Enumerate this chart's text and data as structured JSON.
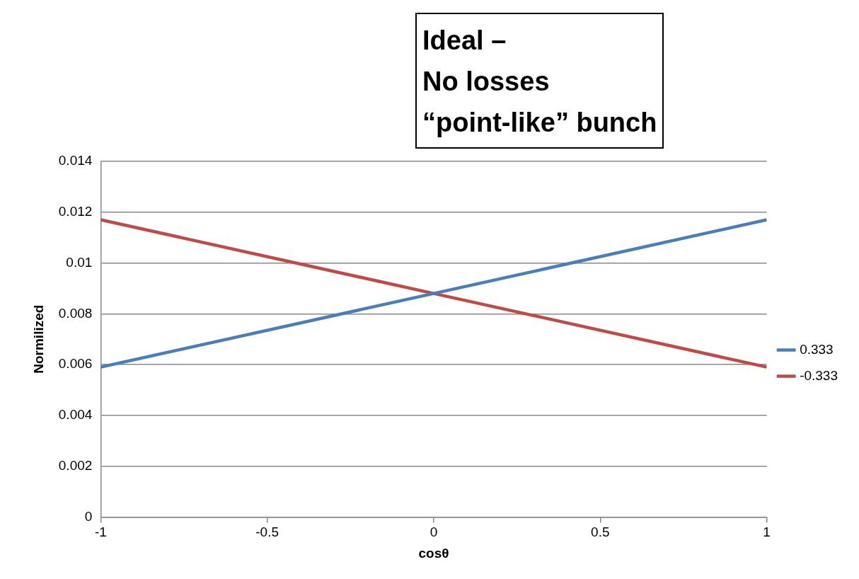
{
  "chart_data": {
    "type": "line",
    "annotations": [
      "Ideal –",
      "No losses",
      "“point-like” bunch"
    ],
    "xlabel": "cosθ",
    "ylabel": "Normilized",
    "x": [
      -1,
      0,
      1
    ],
    "series": [
      {
        "name": "0.333",
        "color": "#4a7ebb",
        "values": [
          0.0059,
          0.0088,
          0.0117
        ]
      },
      {
        "name": "-0.333",
        "color": "#be4b48",
        "values": [
          0.0117,
          0.0088,
          0.0059
        ]
      }
    ],
    "xlim": [
      -1,
      1
    ],
    "xticks": [
      -1,
      -0.5,
      0,
      0.5,
      1
    ],
    "ylim": [
      0,
      0.014
    ],
    "yticks": [
      0,
      0.002,
      0.004,
      0.006,
      0.008,
      0.01,
      0.012,
      0.014
    ],
    "grid": "y",
    "legend": "right",
    "marker": "none",
    "line_style": "solid"
  }
}
